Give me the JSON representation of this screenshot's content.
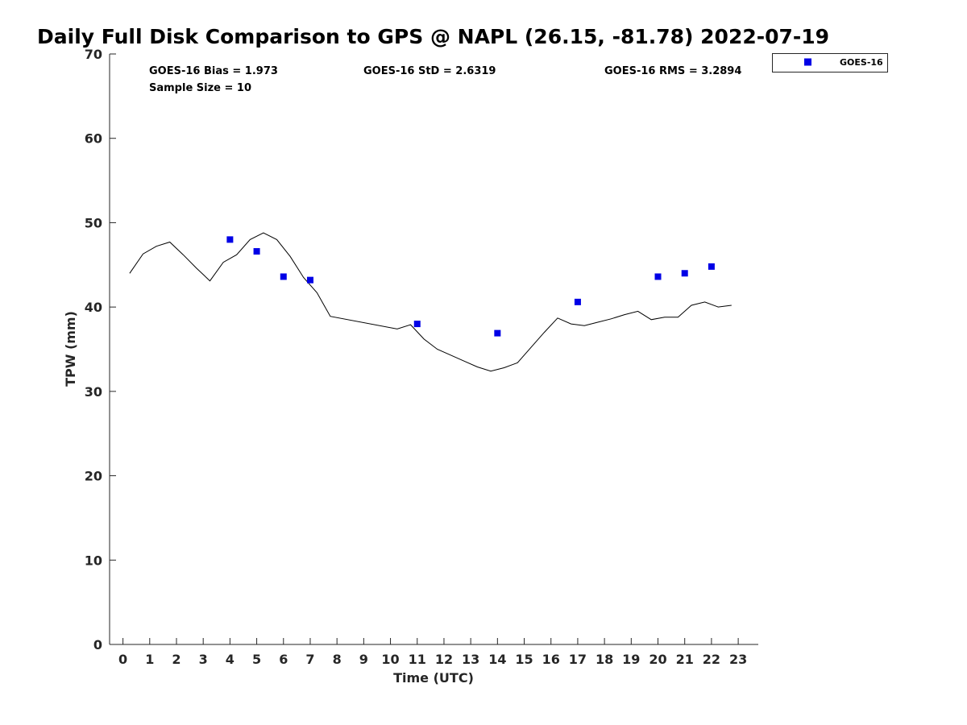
{
  "chart_data": {
    "type": "scatter",
    "title": "Daily Full Disk Comparison to GPS @ NAPL (26.15, -81.78) 2022-07-19",
    "xlabel": "Time (UTC)",
    "ylabel": "TPW (mm)",
    "xlim": [
      -0.5,
      23.75
    ],
    "ylim": [
      0,
      70
    ],
    "x_ticks": [
      0,
      1,
      2,
      3,
      4,
      5,
      6,
      7,
      8,
      9,
      10,
      11,
      12,
      13,
      14,
      15,
      16,
      17,
      18,
      19,
      20,
      21,
      22,
      23
    ],
    "x_tick_labels": [
      "0",
      "1",
      "2",
      "3",
      "4",
      "5",
      "6",
      "7",
      "8",
      "9",
      "10",
      "11",
      "12",
      "13",
      "14",
      "15",
      "16",
      "17",
      "18",
      "19",
      "20",
      "21",
      "22",
      "23"
    ],
    "y_ticks": [
      0,
      10,
      20,
      30,
      40,
      50,
      60,
      70
    ],
    "y_tick_labels": [
      "0",
      "10",
      "20",
      "30",
      "40",
      "50",
      "60",
      "70"
    ],
    "grid": false,
    "legend_position": "outside-top-right",
    "stats": {
      "bias": "GOES-16 Bias = 1.973",
      "std": "GOES-16 StD = 2.6319",
      "rms": "GOES-16 RMS = 3.2894",
      "sample_size": "Sample Size = 10"
    },
    "series": [
      {
        "name": "GOES-16",
        "kind": "scatter",
        "color": "#0000e6",
        "marker": "square",
        "x": [
          4,
          5,
          6,
          7,
          11,
          14,
          17,
          20,
          21,
          22
        ],
        "y": [
          48.0,
          46.6,
          43.6,
          43.2,
          38.0,
          36.9,
          40.6,
          43.6,
          44.0,
          44.8
        ]
      },
      {
        "kind": "line",
        "color": "#000000",
        "x": [
          0.25,
          0.75,
          1.25,
          1.75,
          2.25,
          2.75,
          3.25,
          3.75,
          4.25,
          4.75,
          5.25,
          5.75,
          6.25,
          6.75,
          7.25,
          7.75,
          10.25,
          10.75,
          11.25,
          11.75,
          12.25,
          12.75,
          13.25,
          13.75,
          14.25,
          14.75,
          15.25,
          15.75,
          16.25,
          16.75,
          17.25,
          17.75,
          18.25,
          18.75,
          19.25,
          19.75,
          20.25,
          20.75,
          21.25,
          21.75,
          22.25,
          22.75
        ],
        "y": [
          44.0,
          46.3,
          47.2,
          47.7,
          46.2,
          44.6,
          43.1,
          45.3,
          46.2,
          48.0,
          48.8,
          48.0,
          46.0,
          43.5,
          41.7,
          38.9,
          37.4,
          37.9,
          36.2,
          35.0,
          34.3,
          33.6,
          32.9,
          32.4,
          32.8,
          33.4,
          35.2,
          37.0,
          38.7,
          38.0,
          37.8,
          38.2,
          38.6,
          39.1,
          39.5,
          38.5,
          38.8,
          38.8,
          40.2,
          40.6,
          40.0,
          40.2
        ]
      }
    ]
  }
}
